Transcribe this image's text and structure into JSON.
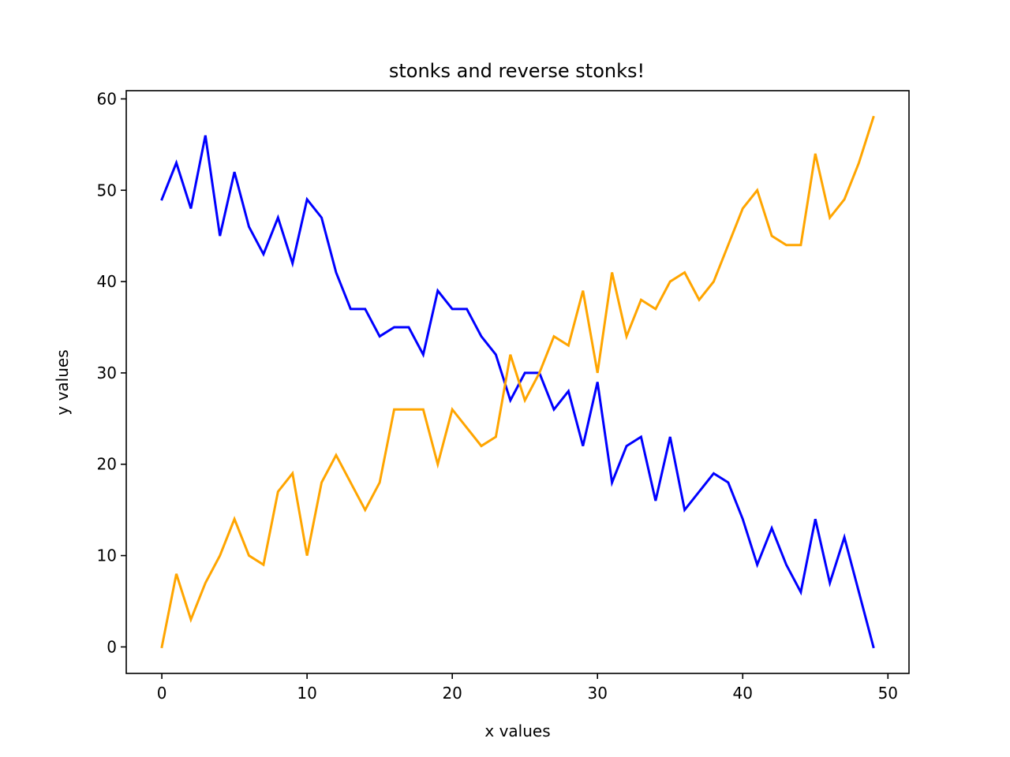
{
  "chart_data": {
    "type": "line",
    "title": "stonks and reverse stonks!",
    "xlabel": "x values",
    "ylabel": "y values",
    "xlim": [
      -2.45,
      51.45
    ],
    "ylim": [
      -2.9,
      60.9
    ],
    "x_ticks": [
      0,
      10,
      20,
      30,
      40,
      50
    ],
    "y_ticks": [
      0,
      10,
      20,
      30,
      40,
      50,
      60
    ],
    "grid": false,
    "x": [
      0,
      1,
      2,
      3,
      4,
      5,
      6,
      7,
      8,
      9,
      10,
      11,
      12,
      13,
      14,
      15,
      16,
      17,
      18,
      19,
      20,
      21,
      22,
      23,
      24,
      25,
      26,
      27,
      28,
      29,
      30,
      31,
      32,
      33,
      34,
      35,
      36,
      37,
      38,
      39,
      40,
      41,
      42,
      43,
      44,
      45,
      46,
      47,
      48,
      49
    ],
    "series": [
      {
        "color": "#0000ff",
        "values": [
          49,
          53,
          48,
          56,
          45,
          52,
          46,
          43,
          47,
          42,
          49,
          47,
          41,
          37,
          37,
          34,
          35,
          35,
          32,
          39,
          37,
          37,
          34,
          32,
          27,
          30,
          30,
          26,
          28,
          22,
          29,
          18,
          22,
          23,
          16,
          23,
          15,
          17,
          19,
          18,
          14,
          9,
          13,
          9,
          6,
          14,
          7,
          12,
          6,
          0
        ]
      },
      {
        "color": "#ffa500",
        "values": [
          0,
          8,
          3,
          7,
          10,
          14,
          10,
          9,
          17,
          19,
          10,
          18,
          21,
          18,
          15,
          18,
          26,
          26,
          26,
          20,
          26,
          24,
          22,
          23,
          32,
          27,
          30,
          34,
          33,
          39,
          30,
          41,
          34,
          38,
          37,
          40,
          41,
          38,
          40,
          44,
          48,
          50,
          45,
          44,
          44,
          54,
          47,
          49,
          53,
          58
        ]
      }
    ]
  }
}
